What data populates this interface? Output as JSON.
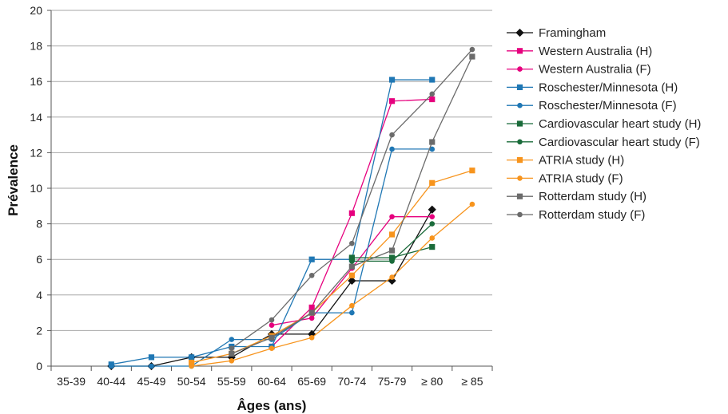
{
  "chart_data": {
    "type": "line",
    "title": "",
    "xlabel": "Âges (ans)",
    "ylabel": "Prévalence",
    "categories": [
      "35-39",
      "40-44",
      "45-49",
      "50-54",
      "55-59",
      "60-64",
      "65-69",
      "70-74",
      "75-79",
      "≥ 80",
      "≥ 85"
    ],
    "ylim": [
      0,
      20
    ],
    "yticks": [
      0,
      2,
      4,
      6,
      8,
      10,
      12,
      14,
      16,
      18,
      20
    ],
    "grid": true,
    "legend_position": "right",
    "series": [
      {
        "name": "Framingham",
        "color": "#111111",
        "marker": "diamond",
        "values": [
          null,
          0.0,
          0.0,
          0.5,
          0.5,
          1.8,
          1.8,
          4.8,
          4.8,
          8.8,
          null
        ]
      },
      {
        "name": "Western Australia (H)",
        "color": "#e6007e",
        "marker": "square",
        "values": [
          null,
          null,
          null,
          null,
          null,
          1.1,
          3.3,
          8.6,
          14.9,
          15.0,
          null
        ]
      },
      {
        "name": "Western Australia (F)",
        "color": "#e6007e",
        "marker": "circle",
        "values": [
          null,
          null,
          null,
          null,
          null,
          2.3,
          2.7,
          5.5,
          8.4,
          8.4,
          null
        ]
      },
      {
        "name": "Roschester/Minnesota (H)",
        "color": "#1f77b4",
        "marker": "square",
        "values": [
          null,
          0.1,
          0.5,
          0.5,
          1.1,
          1.1,
          6.0,
          6.0,
          16.1,
          16.1,
          null
        ]
      },
      {
        "name": "Roschester/Minnesota (F)",
        "color": "#1f77b4",
        "marker": "circle",
        "values": [
          null,
          0.0,
          0.0,
          0.0,
          1.5,
          1.5,
          3.0,
          3.0,
          12.2,
          12.2,
          null
        ]
      },
      {
        "name": "Cardiovascular heart study (H)",
        "color": "#1a6b3a",
        "marker": "square",
        "values": [
          null,
          null,
          null,
          null,
          null,
          null,
          null,
          6.1,
          6.1,
          6.7,
          null
        ]
      },
      {
        "name": "Cardiovascular heart study (F)",
        "color": "#1a6b3a",
        "marker": "circle",
        "values": [
          null,
          null,
          null,
          null,
          null,
          null,
          null,
          5.9,
          5.9,
          8.0,
          null
        ]
      },
      {
        "name": "ATRIA study (H)",
        "color": "#f7941d",
        "marker": "square",
        "values": [
          null,
          null,
          null,
          0.2,
          0.7,
          1.7,
          3.0,
          5.1,
          7.4,
          10.3,
          11.0
        ]
      },
      {
        "name": "ATRIA study (F)",
        "color": "#f7941d",
        "marker": "circle",
        "values": [
          null,
          null,
          null,
          0.0,
          0.3,
          1.0,
          1.6,
          3.4,
          5.0,
          7.2,
          9.1
        ]
      },
      {
        "name": "Rotterdam study (H)",
        "color": "#6b6b6b",
        "marker": "square",
        "values": [
          null,
          null,
          null,
          null,
          0.7,
          1.6,
          3.0,
          5.6,
          6.5,
          12.6,
          17.4
        ]
      },
      {
        "name": "Rotterdam study (F)",
        "color": "#6b6b6b",
        "marker": "circle",
        "values": [
          null,
          null,
          null,
          null,
          1.0,
          2.6,
          5.1,
          6.9,
          13.0,
          15.3,
          17.8
        ]
      }
    ]
  }
}
